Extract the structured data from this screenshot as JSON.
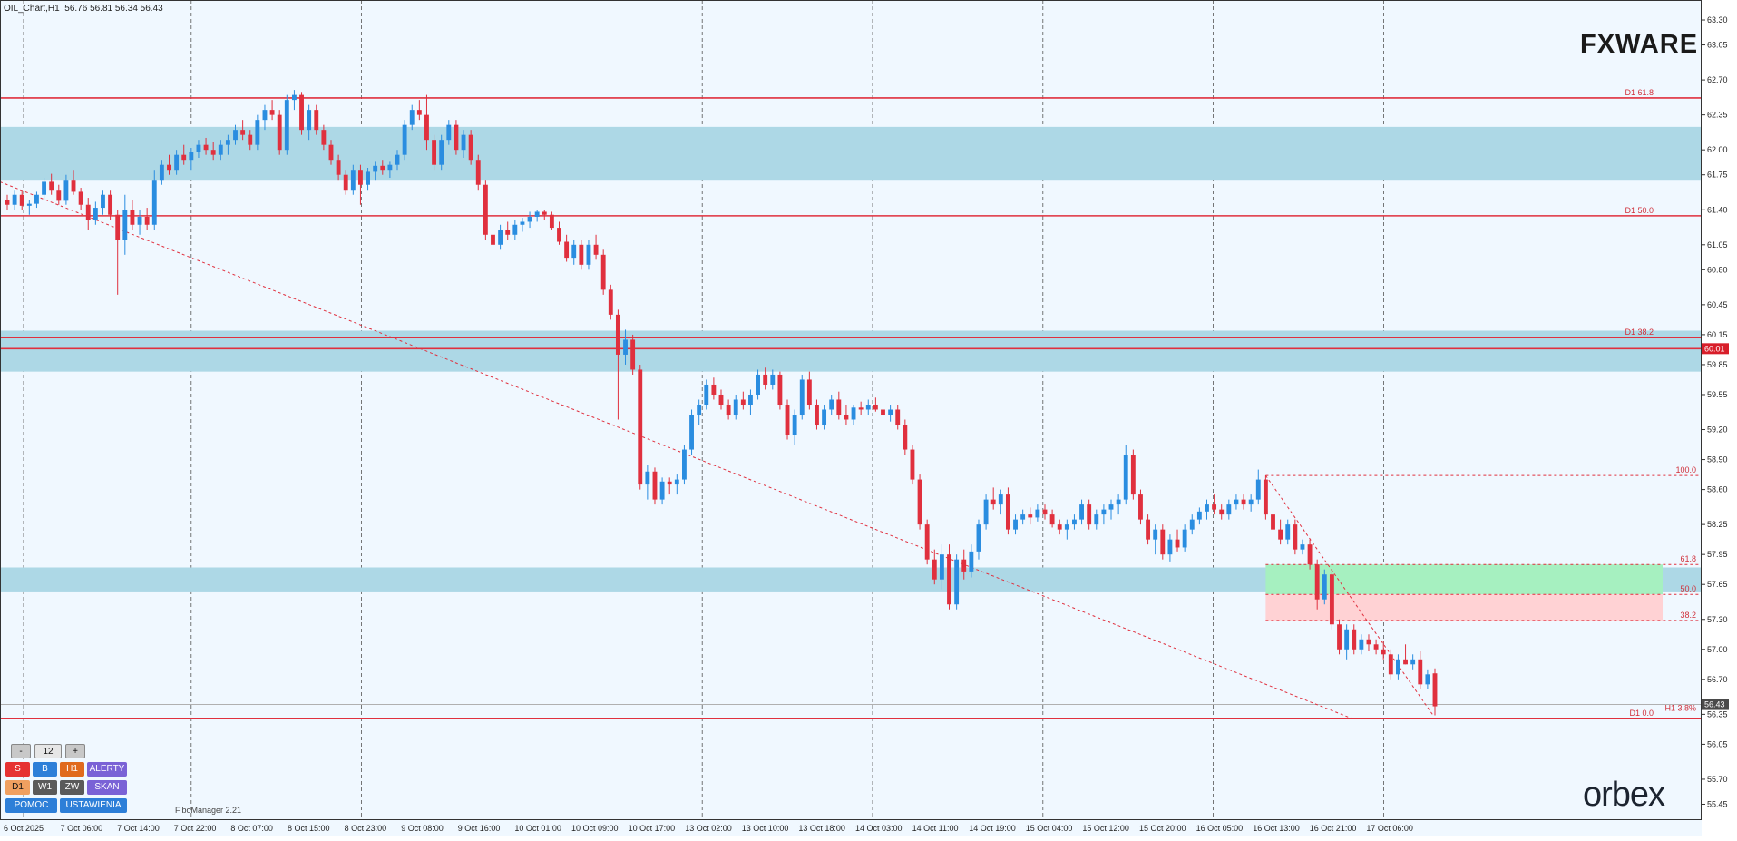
{
  "header": {
    "symbol": "OIL_Chart,H1",
    "ohlc": "56.76 56.81 56.34 56.43"
  },
  "logos": {
    "top_right": "FXWARE",
    "bottom_right": "orbex"
  },
  "fibo_manager_label": "FiboManager 2.21",
  "toolbar": {
    "minus": "-",
    "value": "12",
    "plus": "+",
    "row1": [
      "S",
      "B",
      "H1",
      "ALERTY"
    ],
    "row2": [
      "D1",
      "W1",
      "ZW",
      "SKAN"
    ],
    "row3": [
      "POMOC",
      "USTAWIENIA"
    ]
  },
  "colors": {
    "bull": "#2a8de0",
    "bear": "#e0303e",
    "zone": "#add8e6",
    "level_line": "#e0303e",
    "green_zone": "#a6f0c0",
    "red_zone": "#ffd2d4",
    "background": "#f0f8ff"
  },
  "chart_data": {
    "type": "candlestick",
    "title": "OIL_Chart,H1",
    "timeframe": "H1",
    "ylim": [
      55.3,
      63.5
    ],
    "y_ticks": [
      "63.30",
      "63.05",
      "62.70",
      "62.35",
      "62.00",
      "61.75",
      "61.40",
      "61.05",
      "60.80",
      "60.45",
      "60.15",
      "59.85",
      "59.55",
      "59.20",
      "58.90",
      "58.60",
      "58.25",
      "57.95",
      "57.65",
      "57.30",
      "57.00",
      "56.70",
      "56.35",
      "56.05",
      "55.70",
      "55.45"
    ],
    "x_labels": [
      "6 Oct 2025",
      "7 Oct 06:00",
      "7 Oct 14:00",
      "7 Oct 22:00",
      "8 Oct 07:00",
      "8 Oct 15:00",
      "8 Oct 23:00",
      "9 Oct 08:00",
      "9 Oct 16:00",
      "10 Oct 01:00",
      "10 Oct 09:00",
      "10 Oct 17:00",
      "13 Oct 02:00",
      "13 Oct 10:00",
      "13 Oct 18:00",
      "14 Oct 03:00",
      "14 Oct 11:00",
      "14 Oct 19:00",
      "15 Oct 04:00",
      "15 Oct 12:00",
      "15 Oct 20:00",
      "16 Oct 05:00",
      "16 Oct 13:00",
      "16 Oct 21:00",
      "17 Oct 06:00"
    ],
    "current_price": "56.43",
    "marked_price": "60.01",
    "levels": [
      {
        "label": "D1 61.8",
        "price": 62.52
      },
      {
        "label": "D1 50.0",
        "price": 61.34
      },
      {
        "label": "D1 38.2",
        "price": 60.12
      },
      {
        "label": "",
        "price": 60.01
      },
      {
        "label": "D1 0.0",
        "price": 56.31
      }
    ],
    "zones": [
      {
        "from": 61.7,
        "to": 62.23
      },
      {
        "from": 59.78,
        "to": 60.19
      },
      {
        "from": 57.58,
        "to": 57.82
      }
    ],
    "fib_h1": [
      {
        "label": "100.0",
        "price": 58.74
      },
      {
        "label": "61.8",
        "price": 57.85
      },
      {
        "label": "50.0",
        "price": 57.55
      },
      {
        "label": "38.2",
        "price": 57.29
      },
      {
        "label": "H1 3.8%",
        "price": 56.36
      }
    ],
    "candles": [
      [
        61.5,
        61.55,
        61.4,
        61.45
      ],
      [
        61.45,
        61.6,
        61.4,
        61.55
      ],
      [
        61.55,
        61.6,
        61.4,
        61.44
      ],
      [
        61.44,
        61.5,
        61.35,
        61.46
      ],
      [
        61.46,
        61.58,
        61.42,
        61.55
      ],
      [
        61.55,
        61.72,
        61.5,
        61.68
      ],
      [
        61.68,
        61.76,
        61.55,
        61.6
      ],
      [
        61.6,
        61.65,
        61.45,
        61.49
      ],
      [
        61.49,
        61.75,
        61.45,
        61.7
      ],
      [
        61.7,
        61.8,
        61.55,
        61.58
      ],
      [
        61.58,
        61.62,
        61.4,
        61.45
      ],
      [
        61.45,
        61.52,
        61.2,
        61.3
      ],
      [
        61.3,
        61.48,
        61.25,
        61.42
      ],
      [
        61.42,
        61.6,
        61.35,
        61.55
      ],
      [
        61.55,
        61.6,
        61.3,
        61.35
      ],
      [
        61.35,
        61.4,
        60.55,
        61.1
      ],
      [
        61.1,
        61.55,
        60.95,
        61.4
      ],
      [
        61.4,
        61.5,
        61.2,
        61.25
      ],
      [
        61.25,
        61.4,
        61.15,
        61.33
      ],
      [
        61.33,
        61.42,
        61.2,
        61.25
      ],
      [
        61.25,
        61.8,
        61.2,
        61.7
      ],
      [
        61.7,
        61.9,
        61.65,
        61.85
      ],
      [
        61.85,
        61.95,
        61.75,
        61.8
      ],
      [
        61.8,
        62.0,
        61.75,
        61.95
      ],
      [
        61.95,
        62.05,
        61.85,
        61.9
      ],
      [
        61.9,
        62.02,
        61.8,
        61.98
      ],
      [
        61.98,
        62.1,
        61.92,
        62.05
      ],
      [
        62.05,
        62.12,
        61.95,
        62.0
      ],
      [
        62.0,
        62.08,
        61.9,
        61.95
      ],
      [
        61.95,
        62.1,
        61.9,
        62.05
      ],
      [
        62.05,
        62.15,
        61.95,
        62.1
      ],
      [
        62.1,
        62.25,
        62.05,
        62.2
      ],
      [
        62.2,
        62.3,
        62.1,
        62.15
      ],
      [
        62.15,
        62.2,
        62.0,
        62.05
      ],
      [
        62.05,
        62.35,
        62.0,
        62.3
      ],
      [
        62.3,
        62.45,
        62.2,
        62.4
      ],
      [
        62.4,
        62.5,
        62.3,
        62.35
      ],
      [
        62.35,
        62.4,
        61.95,
        62.0
      ],
      [
        62.0,
        62.55,
        61.95,
        62.5
      ],
      [
        62.5,
        62.6,
        62.4,
        62.55
      ],
      [
        62.55,
        62.58,
        62.15,
        62.2
      ],
      [
        62.2,
        62.45,
        62.1,
        62.4
      ],
      [
        62.4,
        62.45,
        62.15,
        62.2
      ],
      [
        62.2,
        62.25,
        62.0,
        62.05
      ],
      [
        62.05,
        62.1,
        61.85,
        61.9
      ],
      [
        61.9,
        61.95,
        61.7,
        61.75
      ],
      [
        61.75,
        61.8,
        61.55,
        61.6
      ],
      [
        61.6,
        61.85,
        61.55,
        61.8
      ],
      [
        61.8,
        61.85,
        61.45,
        61.65
      ],
      [
        61.65,
        61.82,
        61.6,
        61.78
      ],
      [
        61.78,
        61.88,
        61.7,
        61.84
      ],
      [
        61.84,
        61.9,
        61.75,
        61.8
      ],
      [
        61.8,
        61.88,
        61.72,
        61.85
      ],
      [
        61.85,
        62.0,
        61.8,
        61.95
      ],
      [
        61.95,
        62.3,
        61.9,
        62.25
      ],
      [
        62.25,
        62.45,
        62.2,
        62.4
      ],
      [
        62.4,
        62.5,
        62.3,
        62.35
      ],
      [
        62.35,
        62.55,
        62.0,
        62.1
      ],
      [
        62.1,
        62.15,
        61.8,
        61.85
      ],
      [
        61.85,
        62.15,
        61.8,
        62.1
      ],
      [
        62.1,
        62.3,
        62.05,
        62.25
      ],
      [
        62.25,
        62.3,
        61.95,
        62.0
      ],
      [
        62.0,
        62.2,
        61.92,
        62.15
      ],
      [
        62.15,
        62.2,
        61.85,
        61.9
      ],
      [
        61.9,
        61.95,
        61.6,
        61.65
      ],
      [
        61.65,
        61.7,
        61.1,
        61.15
      ],
      [
        61.15,
        61.3,
        60.95,
        61.05
      ],
      [
        61.05,
        61.25,
        61.0,
        61.2
      ],
      [
        61.2,
        61.28,
        61.1,
        61.15
      ],
      [
        61.15,
        61.3,
        61.1,
        61.25
      ],
      [
        61.25,
        61.32,
        61.18,
        61.28
      ],
      [
        61.28,
        61.38,
        61.22,
        61.33
      ],
      [
        61.33,
        61.4,
        61.28,
        61.38
      ],
      [
        61.38,
        61.4,
        61.3,
        61.35
      ],
      [
        61.35,
        61.38,
        61.2,
        61.22
      ],
      [
        61.22,
        61.28,
        61.05,
        61.08
      ],
      [
        61.08,
        61.15,
        60.88,
        60.92
      ],
      [
        60.92,
        61.1,
        60.85,
        61.05
      ],
      [
        61.05,
        61.1,
        60.8,
        60.85
      ],
      [
        60.85,
        61.1,
        60.8,
        61.05
      ],
      [
        61.05,
        61.15,
        60.9,
        60.95
      ],
      [
        60.95,
        61.0,
        60.55,
        60.6
      ],
      [
        60.6,
        60.65,
        60.3,
        60.35
      ],
      [
        60.35,
        60.4,
        59.3,
        59.95
      ],
      [
        59.95,
        60.2,
        59.85,
        60.1
      ],
      [
        60.1,
        60.15,
        59.75,
        59.8
      ],
      [
        59.8,
        59.85,
        58.6,
        58.65
      ],
      [
        58.65,
        58.85,
        58.5,
        58.78
      ],
      [
        58.78,
        58.82,
        58.45,
        58.5
      ],
      [
        58.5,
        58.72,
        58.45,
        58.68
      ],
      [
        58.68,
        58.72,
        58.55,
        58.65
      ],
      [
        58.65,
        58.75,
        58.55,
        58.7
      ],
      [
        58.7,
        59.05,
        58.65,
        59.0
      ],
      [
        59.0,
        59.4,
        58.95,
        59.35
      ],
      [
        59.35,
        59.5,
        59.25,
        59.45
      ],
      [
        59.45,
        59.7,
        59.4,
        59.65
      ],
      [
        59.65,
        59.72,
        59.5,
        59.55
      ],
      [
        59.55,
        59.6,
        59.4,
        59.45
      ],
      [
        59.45,
        59.5,
        59.3,
        59.35
      ],
      [
        59.35,
        59.55,
        59.3,
        59.5
      ],
      [
        59.5,
        59.58,
        59.4,
        59.45
      ],
      [
        59.45,
        59.6,
        59.35,
        59.55
      ],
      [
        59.55,
        59.8,
        59.5,
        59.75
      ],
      [
        59.75,
        59.82,
        59.6,
        59.65
      ],
      [
        59.65,
        59.8,
        59.6,
        59.75
      ],
      [
        59.75,
        59.78,
        59.4,
        59.45
      ],
      [
        59.45,
        59.5,
        59.1,
        59.15
      ],
      [
        59.15,
        59.4,
        59.05,
        59.35
      ],
      [
        59.35,
        59.75,
        59.3,
        59.7
      ],
      [
        59.7,
        59.78,
        59.4,
        59.45
      ],
      [
        59.45,
        59.5,
        59.2,
        59.25
      ],
      [
        59.25,
        59.45,
        59.2,
        59.4
      ],
      [
        59.4,
        59.55,
        59.35,
        59.5
      ],
      [
        59.5,
        59.58,
        59.3,
        59.35
      ],
      [
        59.35,
        59.45,
        59.25,
        59.3
      ],
      [
        59.3,
        59.45,
        59.25,
        59.42
      ],
      [
        59.42,
        59.48,
        59.35,
        59.4
      ],
      [
        59.4,
        59.5,
        59.35,
        59.45
      ],
      [
        59.45,
        59.52,
        59.38,
        59.4
      ],
      [
        59.4,
        59.45,
        59.3,
        59.35
      ],
      [
        59.35,
        59.45,
        59.28,
        59.4
      ],
      [
        59.4,
        59.45,
        59.2,
        59.25
      ],
      [
        59.25,
        59.3,
        58.95,
        59.0
      ],
      [
        59.0,
        59.05,
        58.65,
        58.7
      ],
      [
        58.7,
        58.75,
        58.2,
        58.25
      ],
      [
        58.25,
        58.3,
        57.85,
        57.9
      ],
      [
        57.9,
        58.0,
        57.65,
        57.7
      ],
      [
        57.7,
        58.05,
        57.6,
        57.95
      ],
      [
        57.95,
        58.05,
        57.4,
        57.45
      ],
      [
        57.45,
        57.95,
        57.4,
        57.9
      ],
      [
        57.9,
        58.0,
        57.7,
        57.78
      ],
      [
        57.78,
        58.05,
        57.72,
        57.98
      ],
      [
        57.98,
        58.3,
        57.9,
        58.25
      ],
      [
        58.25,
        58.55,
        58.2,
        58.5
      ],
      [
        58.5,
        58.62,
        58.4,
        58.45
      ],
      [
        58.45,
        58.6,
        58.35,
        58.55
      ],
      [
        58.55,
        58.62,
        58.15,
        58.2
      ],
      [
        58.2,
        58.35,
        58.15,
        58.3
      ],
      [
        58.3,
        58.4,
        58.25,
        58.35
      ],
      [
        58.35,
        58.42,
        58.25,
        58.32
      ],
      [
        58.32,
        58.45,
        58.28,
        58.4
      ],
      [
        58.4,
        58.45,
        58.3,
        58.35
      ],
      [
        58.35,
        58.4,
        58.22,
        58.25
      ],
      [
        58.25,
        58.3,
        58.15,
        58.2
      ],
      [
        58.2,
        58.3,
        58.1,
        58.25
      ],
      [
        58.25,
        58.35,
        58.2,
        58.3
      ],
      [
        58.3,
        58.5,
        58.25,
        58.45
      ],
      [
        58.45,
        58.5,
        58.2,
        58.25
      ],
      [
        58.25,
        58.4,
        58.2,
        58.35
      ],
      [
        58.35,
        58.45,
        58.25,
        58.4
      ],
      [
        58.4,
        58.5,
        58.3,
        58.45
      ],
      [
        58.45,
        58.55,
        58.35,
        58.5
      ],
      [
        58.5,
        59.05,
        58.45,
        58.95
      ],
      [
        58.95,
        59.0,
        58.5,
        58.55
      ],
      [
        58.55,
        58.6,
        58.25,
        58.3
      ],
      [
        58.3,
        58.35,
        58.05,
        58.1
      ],
      [
        58.1,
        58.25,
        57.95,
        58.2
      ],
      [
        58.2,
        58.25,
        57.9,
        57.95
      ],
      [
        57.95,
        58.15,
        57.88,
        58.1
      ],
      [
        58.1,
        58.2,
        57.98,
        58.02
      ],
      [
        58.02,
        58.25,
        57.98,
        58.2
      ],
      [
        58.2,
        58.35,
        58.15,
        58.3
      ],
      [
        58.3,
        58.42,
        58.25,
        58.38
      ],
      [
        58.38,
        58.5,
        58.3,
        58.45
      ],
      [
        58.45,
        58.55,
        58.35,
        58.4
      ],
      [
        58.4,
        58.45,
        58.3,
        58.35
      ],
      [
        58.35,
        58.5,
        58.3,
        58.45
      ],
      [
        58.45,
        58.55,
        58.4,
        58.5
      ],
      [
        58.5,
        58.55,
        58.4,
        58.45
      ],
      [
        58.45,
        58.55,
        58.38,
        58.5
      ],
      [
        58.5,
        58.8,
        58.45,
        58.7
      ],
      [
        58.7,
        58.74,
        58.3,
        58.35
      ],
      [
        58.35,
        58.4,
        58.15,
        58.2
      ],
      [
        58.2,
        58.3,
        58.05,
        58.1
      ],
      [
        58.1,
        58.3,
        58.05,
        58.25
      ],
      [
        58.25,
        58.3,
        57.95,
        58.0
      ],
      [
        58.0,
        58.1,
        57.95,
        58.05
      ],
      [
        58.05,
        58.1,
        57.8,
        57.85
      ],
      [
        57.85,
        57.9,
        57.4,
        57.5
      ],
      [
        57.5,
        57.8,
        57.45,
        57.75
      ],
      [
        57.75,
        57.78,
        57.2,
        57.25
      ],
      [
        57.25,
        57.3,
        56.95,
        57.0
      ],
      [
        57.0,
        57.25,
        56.9,
        57.2
      ],
      [
        57.2,
        57.25,
        56.95,
        57.0
      ],
      [
        57.0,
        57.15,
        56.95,
        57.1
      ],
      [
        57.1,
        57.15,
        56.98,
        57.05
      ],
      [
        57.05,
        57.1,
        56.95,
        57.0
      ],
      [
        57.0,
        57.08,
        56.9,
        56.95
      ],
      [
        56.95,
        57.0,
        56.7,
        56.75
      ],
      [
        56.75,
        56.95,
        56.7,
        56.9
      ],
      [
        56.9,
        57.05,
        56.85,
        56.85
      ],
      [
        56.85,
        56.95,
        56.8,
        56.9
      ],
      [
        56.9,
        56.98,
        56.6,
        56.65
      ],
      [
        56.65,
        56.8,
        56.6,
        56.75
      ],
      [
        56.76,
        56.81,
        56.34,
        56.43
      ]
    ]
  }
}
